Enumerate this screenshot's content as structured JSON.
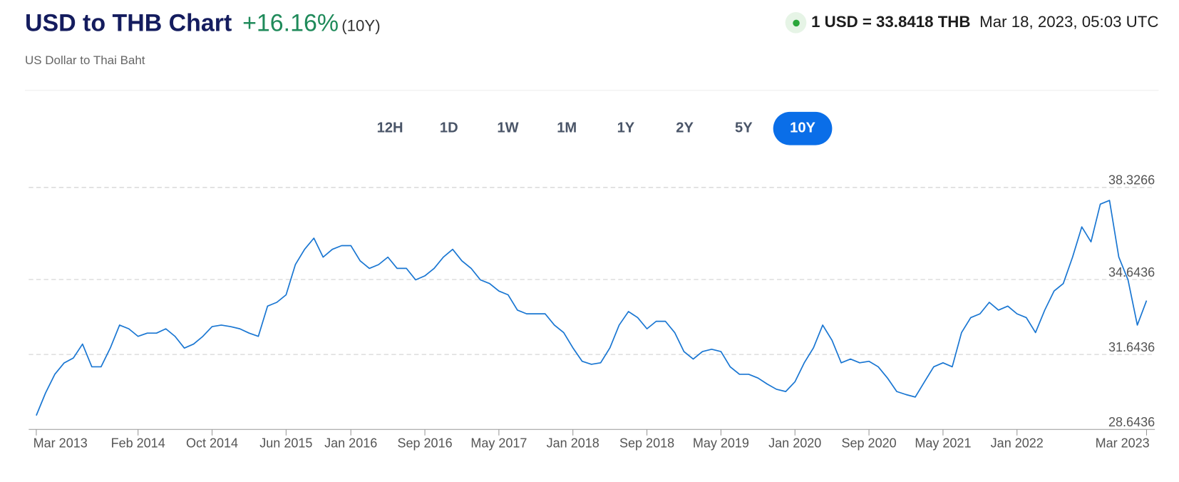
{
  "header": {
    "title": "USD to THB Chart",
    "change": "+16.16%",
    "period": "(10Y)",
    "subtitle": "US Dollar to Thai Baht",
    "rate": "1 USD = 33.8418 THB",
    "timestamp": "Mar 18, 2023, 05:03 UTC"
  },
  "ranges": [
    "12H",
    "1D",
    "1W",
    "1M",
    "1Y",
    "2Y",
    "5Y",
    "10Y"
  ],
  "active_range": "10Y",
  "chart_data": {
    "type": "line",
    "color": "#1976d2",
    "grid": true,
    "x": [
      "2013-03",
      "2013-04",
      "2013-05",
      "2013-06",
      "2013-07",
      "2013-08",
      "2013-09",
      "2013-10",
      "2013-11",
      "2013-12",
      "2014-01",
      "2014-02",
      "2014-03",
      "2014-04",
      "2014-05",
      "2014-06",
      "2014-07",
      "2014-08",
      "2014-09",
      "2014-10",
      "2014-11",
      "2014-12",
      "2015-01",
      "2015-02",
      "2015-03",
      "2015-04",
      "2015-05",
      "2015-06",
      "2015-07",
      "2015-08",
      "2015-09",
      "2015-10",
      "2015-11",
      "2015-12",
      "2016-01",
      "2016-02",
      "2016-03",
      "2016-04",
      "2016-05",
      "2016-06",
      "2016-07",
      "2016-08",
      "2016-09",
      "2016-10",
      "2016-11",
      "2016-12",
      "2017-01",
      "2017-02",
      "2017-03",
      "2017-04",
      "2017-05",
      "2017-06",
      "2017-07",
      "2017-08",
      "2017-09",
      "2017-10",
      "2017-11",
      "2017-12",
      "2018-01",
      "2018-02",
      "2018-03",
      "2018-04",
      "2018-05",
      "2018-06",
      "2018-07",
      "2018-08",
      "2018-09",
      "2018-10",
      "2018-11",
      "2018-12",
      "2019-01",
      "2019-02",
      "2019-03",
      "2019-04",
      "2019-05",
      "2019-06",
      "2019-07",
      "2019-08",
      "2019-09",
      "2019-10",
      "2019-11",
      "2019-12",
      "2020-01",
      "2020-02",
      "2020-03",
      "2020-04",
      "2020-05",
      "2020-06",
      "2020-07",
      "2020-08",
      "2020-09",
      "2020-10",
      "2020-11",
      "2020-12",
      "2021-01",
      "2021-02",
      "2021-03",
      "2021-04",
      "2021-05",
      "2021-06",
      "2021-07",
      "2021-08",
      "2021-09",
      "2021-10",
      "2021-11",
      "2021-12",
      "2022-01",
      "2022-02",
      "2022-03",
      "2022-04",
      "2022-05",
      "2022-06",
      "2022-07",
      "2022-08",
      "2022-09",
      "2022-10",
      "2022-11",
      "2022-12",
      "2023-01",
      "2023-02",
      "2023-03"
    ],
    "values": [
      29.2,
      30.1,
      30.85,
      31.3,
      31.5,
      32.06,
      31.15,
      31.15,
      31.9,
      32.82,
      32.67,
      32.37,
      32.5,
      32.5,
      32.67,
      32.37,
      31.9,
      32.06,
      32.37,
      32.76,
      32.82,
      32.76,
      32.67,
      32.5,
      32.37,
      33.58,
      33.73,
      34.03,
      35.24,
      35.85,
      36.3,
      35.54,
      35.85,
      36.0,
      36.0,
      35.39,
      35.09,
      35.24,
      35.54,
      35.09,
      35.09,
      34.63,
      34.79,
      35.09,
      35.54,
      35.85,
      35.39,
      35.09,
      34.63,
      34.48,
      34.18,
      34.03,
      33.42,
      33.27,
      33.27,
      33.27,
      32.82,
      32.52,
      31.91,
      31.37,
      31.25,
      31.31,
      31.91,
      32.82,
      33.36,
      33.12,
      32.67,
      32.97,
      32.97,
      32.52,
      31.76,
      31.46,
      31.76,
      31.85,
      31.76,
      31.15,
      30.85,
      30.85,
      30.7,
      30.46,
      30.25,
      30.16,
      30.55,
      31.31,
      31.91,
      32.82,
      32.21,
      31.31,
      31.46,
      31.31,
      31.37,
      31.15,
      30.7,
      30.16,
      30.04,
      29.94,
      30.55,
      31.15,
      31.31,
      31.15,
      32.52,
      33.12,
      33.27,
      33.73,
      33.42,
      33.58,
      33.27,
      33.12,
      32.52,
      33.42,
      34.18,
      34.48,
      35.54,
      36.75,
      36.15,
      37.66,
      37.81,
      35.54,
      34.63,
      32.82,
      33.8
    ],
    "xlim": [
      "2013-03",
      "2023-03"
    ],
    "xticks": [
      {
        "value": "2013-03",
        "label": "Mar 2013"
      },
      {
        "value": "2014-02",
        "label": "Feb 2014"
      },
      {
        "value": "2014-10",
        "label": "Oct 2014"
      },
      {
        "value": "2015-06",
        "label": "Jun 2015"
      },
      {
        "value": "2016-01",
        "label": "Jan 2016"
      },
      {
        "value": "2016-09",
        "label": "Sep 2016"
      },
      {
        "value": "2017-05",
        "label": "May 2017"
      },
      {
        "value": "2018-01",
        "label": "Jan 2018"
      },
      {
        "value": "2018-09",
        "label": "Sep 2018"
      },
      {
        "value": "2019-05",
        "label": "May 2019"
      },
      {
        "value": "2020-01",
        "label": "Jan 2020"
      },
      {
        "value": "2020-09",
        "label": "Sep 2020"
      },
      {
        "value": "2021-05",
        "label": "May 2021"
      },
      {
        "value": "2022-01",
        "label": "Jan 2022"
      },
      {
        "value": "2023-03",
        "label": "Mar 2023"
      }
    ],
    "ylim": [
      28.6436,
      38.3266
    ],
    "yticks": [
      28.6436,
      31.6436,
      34.6436,
      38.3266
    ]
  }
}
